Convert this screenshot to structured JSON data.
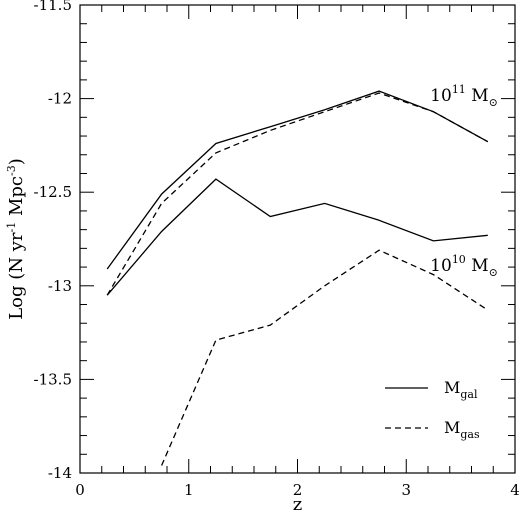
{
  "chart_data": {
    "type": "line",
    "xlabel": "z",
    "ylabel": "Log (N yr",
    "ylabel_sup1": "-1",
    "ylabel_mid": " Mpc",
    "ylabel_sup2": "-3",
    "ylabel_end": ")",
    "xlim": [
      0,
      4
    ],
    "ylim": [
      -14,
      -11.5
    ],
    "x_ticks": [
      0,
      1,
      2,
      3,
      4
    ],
    "y_ticks": [
      -14,
      -13.5,
      -13,
      -12.5,
      -12,
      -11.5
    ],
    "grid": false,
    "legend_placement": "bottom-right",
    "legend": [
      {
        "style": "solid",
        "label_main": "M",
        "label_sub": "gal"
      },
      {
        "style": "dashed",
        "label_main": "M",
        "label_sub": "gas"
      }
    ],
    "annotations": [
      {
        "base": "10",
        "exp": "11",
        "unit": " M",
        "sun": "⊙",
        "at": {
          "x": 3.22,
          "y": -11.98
        }
      },
      {
        "base": "10",
        "exp": "10",
        "unit": " M",
        "sun": "⊙",
        "at": {
          "x": 3.22,
          "y": -12.89
        }
      }
    ],
    "series": [
      {
        "group": "10^11",
        "style": "solid",
        "x": [
          0.25,
          0.75,
          1.25,
          1.75,
          2.25,
          2.75,
          3.25,
          3.75
        ],
        "y": [
          -12.91,
          -12.51,
          -12.24,
          -12.15,
          -12.06,
          -11.96,
          -12.07,
          -12.23
        ]
      },
      {
        "group": "10^11",
        "style": "dashed",
        "x": [
          0.25,
          0.75,
          1.25,
          1.75,
          2.25,
          2.75,
          3.25,
          3.75
        ],
        "y": [
          -13.05,
          -12.56,
          -12.29,
          -12.17,
          -12.07,
          -11.97,
          -12.07,
          -12.23
        ]
      },
      {
        "group": "10^10",
        "style": "solid",
        "x": [
          0.25,
          0.75,
          1.25,
          1.75,
          2.25,
          2.75,
          3.25,
          3.75
        ],
        "y": [
          -13.05,
          -12.71,
          -12.43,
          -12.63,
          -12.56,
          -12.65,
          -12.76,
          -12.73
        ]
      },
      {
        "group": "10^10",
        "style": "dashed",
        "x": [
          0.75,
          1.25,
          1.75,
          2.25,
          2.75,
          3.25,
          3.75
        ],
        "y": [
          -13.96,
          -13.29,
          -13.21,
          -13.0,
          -12.81,
          -12.94,
          -13.13
        ]
      }
    ]
  }
}
